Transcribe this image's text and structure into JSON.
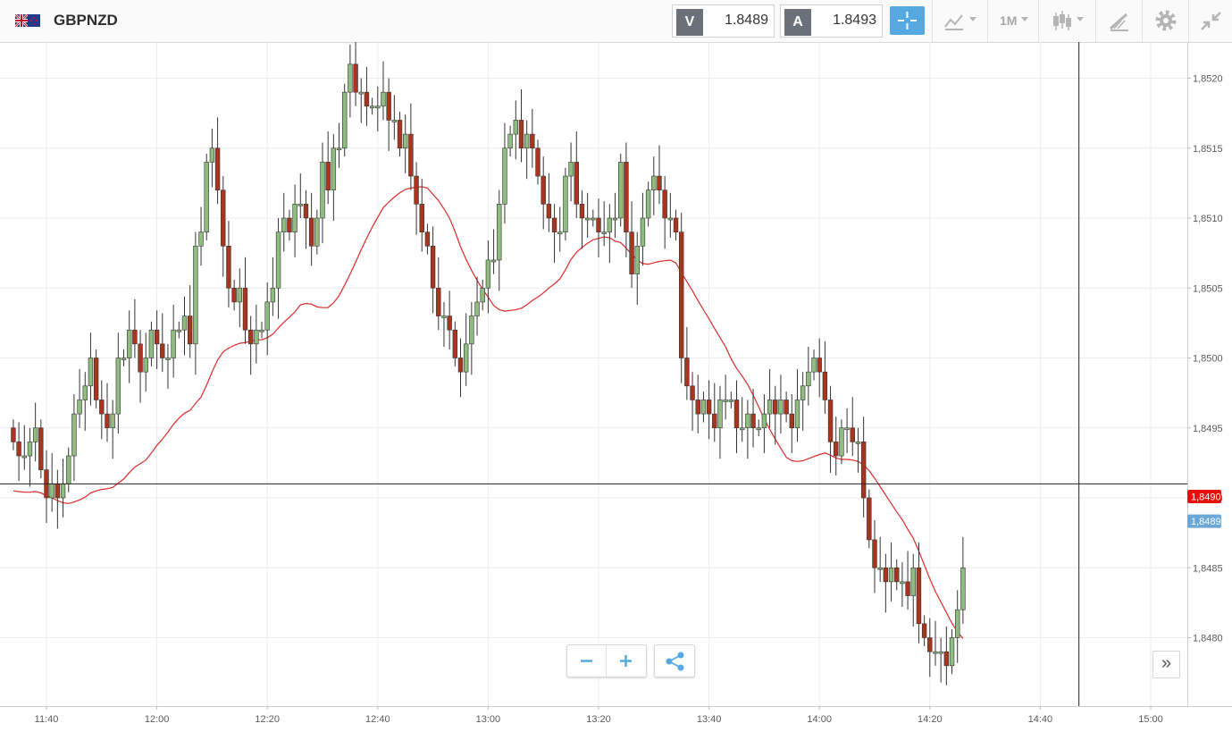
{
  "symbol": "GBPNZD",
  "bid": {
    "label": "V",
    "price": "1.8489"
  },
  "ask": {
    "label": "A",
    "price": "1.8493"
  },
  "toolbar": {
    "chart_type_icon": "line-chart-icon",
    "timeframe": "1M",
    "candles_icon": "candlestick-icon",
    "draw_icon": "drawing-tools-icon",
    "settings_icon": "gear-icon",
    "fullscreen_icon": "collapse-icon"
  },
  "colors": {
    "up": "#8fbc7f",
    "down": "#a8351e",
    "ma": "#e02a2a",
    "bid_tag": "#e8100f",
    "ask_tag": "#6aa8d8",
    "accent": "#55a9e0"
  },
  "chart_data": {
    "type": "candlestick",
    "x_ticks": [
      "11:40",
      "12:00",
      "12:20",
      "12:40",
      "13:00",
      "13:20",
      "13:40",
      "14:00",
      "14:20",
      "14:40",
      "15:00"
    ],
    "y_ticks": [
      "1,8520",
      "1,8515",
      "1,8510",
      "1,8505",
      "1,8500",
      "1,8495",
      "1,8490",
      "1,8485",
      "1,8480"
    ],
    "ylim": [
      1.8476,
      1.8523
    ],
    "x_start": "11:34",
    "interval_minutes": 1,
    "grid": true,
    "crosshair": {
      "time": "14:47",
      "price": 1.8491
    },
    "price_tags": [
      {
        "label": "1,8490",
        "value": 1.849,
        "color": "red"
      },
      {
        "label": "1,8489",
        "value": 1.8489,
        "color": "blue"
      }
    ],
    "closes": [
      1.8494,
      1.8493,
      1.8493,
      1.8494,
      1.8495,
      1.8492,
      1.849,
      1.8491,
      1.849,
      1.8491,
      1.8493,
      1.8496,
      1.8497,
      1.8498,
      1.85,
      1.8497,
      1.8496,
      1.8495,
      1.8496,
      1.85,
      1.85,
      1.8502,
      1.8501,
      1.8499,
      1.85,
      1.8502,
      1.8501,
      1.85,
      1.85,
      1.8502,
      1.8502,
      1.8503,
      1.8501,
      1.8508,
      1.8509,
      1.8514,
      1.8515,
      1.8512,
      1.8508,
      1.8505,
      1.8504,
      1.8505,
      1.8502,
      1.8501,
      1.8502,
      1.8502,
      1.8504,
      1.8505,
      1.8509,
      1.851,
      1.8509,
      1.8511,
      1.8511,
      1.851,
      1.8508,
      1.851,
      1.8514,
      1.8512,
      1.8515,
      1.8515,
      1.8519,
      1.8521,
      1.8519,
      1.8519,
      1.8518,
      1.8518,
      1.8518,
      1.8519,
      1.8517,
      1.8517,
      1.8515,
      1.8516,
      1.8513,
      1.8511,
      1.8509,
      1.8508,
      1.8505,
      1.8503,
      1.8503,
      1.8502,
      1.85,
      1.8499,
      1.8501,
      1.8503,
      1.8504,
      1.8505,
      1.8507,
      1.8507,
      1.8511,
      1.8515,
      1.8516,
      1.8517,
      1.8515,
      1.8516,
      1.8515,
      1.8513,
      1.8511,
      1.851,
      1.8509,
      1.8509,
      1.8513,
      1.8514,
      1.8511,
      1.851,
      1.851,
      1.851,
      1.8509,
      1.8509,
      1.851,
      1.851,
      1.8514,
      1.8509,
      1.8506,
      1.8508,
      1.851,
      1.8512,
      1.8513,
      1.8512,
      1.851,
      1.851,
      1.8509,
      1.85,
      1.8498,
      1.8497,
      1.8496,
      1.8497,
      1.8496,
      1.8495,
      1.8497,
      1.8497,
      1.8497,
      1.8495,
      1.8495,
      1.8496,
      1.8495,
      1.8495,
      1.8496,
      1.8497,
      1.8496,
      1.8497,
      1.8496,
      1.8495,
      1.8497,
      1.8498,
      1.8499,
      1.85,
      1.8499,
      1.8497,
      1.8494,
      1.8493,
      1.8495,
      1.8495,
      1.8494,
      1.8494,
      1.849,
      1.8487,
      1.8485,
      1.8485,
      1.8484,
      1.8485,
      1.8484,
      1.8484,
      1.8483,
      1.8485,
      1.8481,
      1.848,
      1.8479,
      1.8479,
      1.8479,
      1.8478,
      1.848,
      1.8482,
      1.8485
    ]
  }
}
